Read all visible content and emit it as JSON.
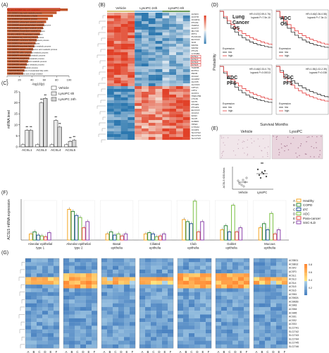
{
  "panels": {
    "A": "(A)",
    "B": "(B)",
    "C": "(C)",
    "D": "(D)",
    "E": "(E)",
    "F": "(F)",
    "G": "(G)"
  },
  "panelA": {
    "xlabel": "-log10(p)",
    "ticks": [
      "0",
      "20",
      "40",
      "60",
      "80",
      "100"
    ],
    "highlight": "R-HAS-8978868 Fatty acid metabolism",
    "terms": [
      "R-HAS-8978868 Fatty acid metabolism",
      "GO:0006631 fatty acid metabolic process",
      "R-HAS-556833 Metabolism of lipids",
      "GO:0016042 lipid catabolic process",
      "GO:0044242 cellular lipid catabolic process",
      "GO:0006650 glycerophospholipid metabolic process",
      "GO:0046486 glycerolipid metabolic process",
      "GO:0006644 phospholipid metabolic process",
      "R-HAS-1483257 Phospholipid metabolism",
      "GO:0006633 fatty acid biosynthetic process",
      "GO:0046467 membrane lipid biosynthetic process",
      "GO:0008610 lipid biosynthetic process",
      "GO:0001676 long-chain fatty acid metabolic process",
      "GO:0006575 cellular modified amino acid metabolic process",
      "GO:0006790 sulfur compound metabolic process",
      "GO:0005975 carbohydrate metabolic process",
      "GO:0006793 phosphorus metabolic process",
      "GO:0019752 carboxylic acid metabolic process",
      "GO:0044255 cellular lipid metabolic process",
      "GO:0006629 lipid metabolic process",
      "hsa01040 Biosynthesis of unsaturated fatty acids",
      "WikiP WP4522 Fatty acid omega oxidation"
    ],
    "values": [
      98,
      80,
      74,
      66,
      63,
      60,
      58,
      55,
      53,
      50,
      48,
      46,
      44,
      42,
      40,
      38,
      36,
      34,
      32,
      30,
      28,
      26
    ]
  },
  "panelB": {
    "groups": [
      "Vehicle",
      "LysoPC-24h",
      "LysoPC-6h"
    ],
    "genes": [
      "ACSF3",
      "ACOT8",
      "ACADVL",
      "PTGS1",
      "HADHA",
      "ACOT7",
      "MLYCD",
      "PPT1",
      "PLA2G4A",
      "ELOVL6",
      "SCD",
      "FADS1",
      "FADS2",
      "PTGIS",
      "CYP4B1",
      "ACSL1",
      "ACSL3",
      "ACSL4",
      "ACSL5",
      "HADHB",
      "ECHS1",
      "PECR",
      "ACAA2",
      "ACADM",
      "ALOX5",
      "ALOX15",
      "CPT1A",
      "CPT2",
      "ACOX1",
      "HSD17B4",
      "LTC4S",
      "GGT5",
      "PTGES",
      "PTGDS",
      "ELOVL5",
      "ACACA",
      "FASN",
      "OLAH",
      "ACBD6",
      "HPGD",
      "CYP2J2",
      "ACADS",
      "SLC27A2",
      "SLC27A3",
      "SLC27A5"
    ],
    "highlight": [
      "ACSL1",
      "ACSL3",
      "ACSL4",
      "ACSL5"
    ]
  },
  "chart_data": {
    "type": "bar",
    "ylabel": "mRNA level",
    "ylim": [
      0,
      25
    ],
    "yticks": [
      "0",
      "5",
      "10",
      "15",
      "20",
      "25"
    ],
    "categories": [
      "ACSL1",
      "ACSL3",
      "ACSL4",
      "ACSL5"
    ],
    "series": [
      {
        "name": "Vehicle",
        "values": [
          1,
          1,
          1,
          1
        ]
      },
      {
        "name": "LysoPC 6h",
        "values": [
          7.5,
          20,
          12,
          2.5
        ]
      },
      {
        "name": "LysoPC 24h",
        "values": [
          7.5,
          22,
          9,
          3
        ]
      }
    ],
    "stars": "**"
  },
  "panelD": {
    "ylabel": "Probability",
    "xlabel": "Survival Months",
    "subplots": [
      {
        "title": "Lung Cancer OS",
        "stats": "HR=0.67(0.59-0.76)\nlogrank P=7.5e-10"
      },
      {
        "title": "ADC OS",
        "stats": "HR=0.46(0.36-0.58)\nlogrank P=7.3e-11"
      },
      {
        "title": "ADC PFS",
        "stats": "HR=0.46(0.33-0.70)\nlogrank P=0.00013"
      },
      {
        "title": "SCC PFS",
        "stats": "HR=1.55(1.02-2.39)\nlogrank P=0.038"
      }
    ],
    "legend_title": "Expression",
    "legend_low": "low",
    "legend_high": "high"
  },
  "panelE": {
    "labels": [
      "Vehicle",
      "LysoPC"
    ],
    "ylabel": "ACSL5 IOD/Area",
    "stars": "**"
  },
  "panelF": {
    "ylabel": "ACSL5 mRNA expression",
    "legend": [
      {
        "letter": "A",
        "name": "Healthy",
        "color": "#f5a623"
      },
      {
        "letter": "B",
        "name": "COPD",
        "color": "#2e8b3a"
      },
      {
        "letter": "C",
        "name": "IPF",
        "color": "#1f4e99"
      },
      {
        "letter": "D",
        "name": "ADC",
        "color": "#7ac143"
      },
      {
        "letter": "E",
        "name": "Para-cancer",
        "color": "#e84c3d"
      },
      {
        "letter": "F",
        "name": "SSC-ILD",
        "color": "#8e44ad"
      }
    ],
    "groups": [
      {
        "name": "Alveolar epithelial type 1",
        "values": [
          1.5,
          2,
          1.2,
          1,
          0.8,
          1.8
        ]
      },
      {
        "name": "Alveolar epithelial type 2",
        "values": [
          7.5,
          7,
          6,
          5.5,
          3,
          4.5
        ]
      },
      {
        "name": "Basal epithelia",
        "values": [
          1.5,
          2,
          1.2,
          1.5,
          1,
          1.5
        ]
      },
      {
        "name": "Ciliated epithelia",
        "values": [
          1.5,
          1.8,
          1.5,
          0.8,
          1,
          1.5
        ]
      },
      {
        "name": "Club epithelia",
        "values": [
          5,
          4.5,
          4,
          9.5,
          2,
          4.5
        ]
      },
      {
        "name": "Goblet epithelia",
        "values": [
          2.5,
          3.5,
          2,
          8.5,
          2,
          3
        ]
      },
      {
        "name": "Mucous epithelia",
        "values": [
          3,
          4,
          2.5,
          6.5,
          1.5,
          2.5
        ]
      }
    ]
  },
  "panelG": {
    "genes": [
      "ACSBG1",
      "ACSBG2",
      "ACSF2",
      "ACSF3",
      "ACSL1",
      "ACSL3",
      "ACSL4",
      "ACSL5",
      "ACSL6",
      "ACSM1",
      "ACSM2A",
      "ACSM2B",
      "ACSM3",
      "ACSM4",
      "ACSM5",
      "ACSS1",
      "ACSS2",
      "ACSS3",
      "SLC27A1",
      "SLC27A2",
      "SLC27A3",
      "SLC27A4",
      "SLC27A5",
      "SLC27A6"
    ],
    "xletters": [
      "A",
      "B",
      "C",
      "D",
      "E",
      "F"
    ],
    "scale": [
      "0.8",
      "0.6",
      "0.4",
      "0.2"
    ]
  }
}
